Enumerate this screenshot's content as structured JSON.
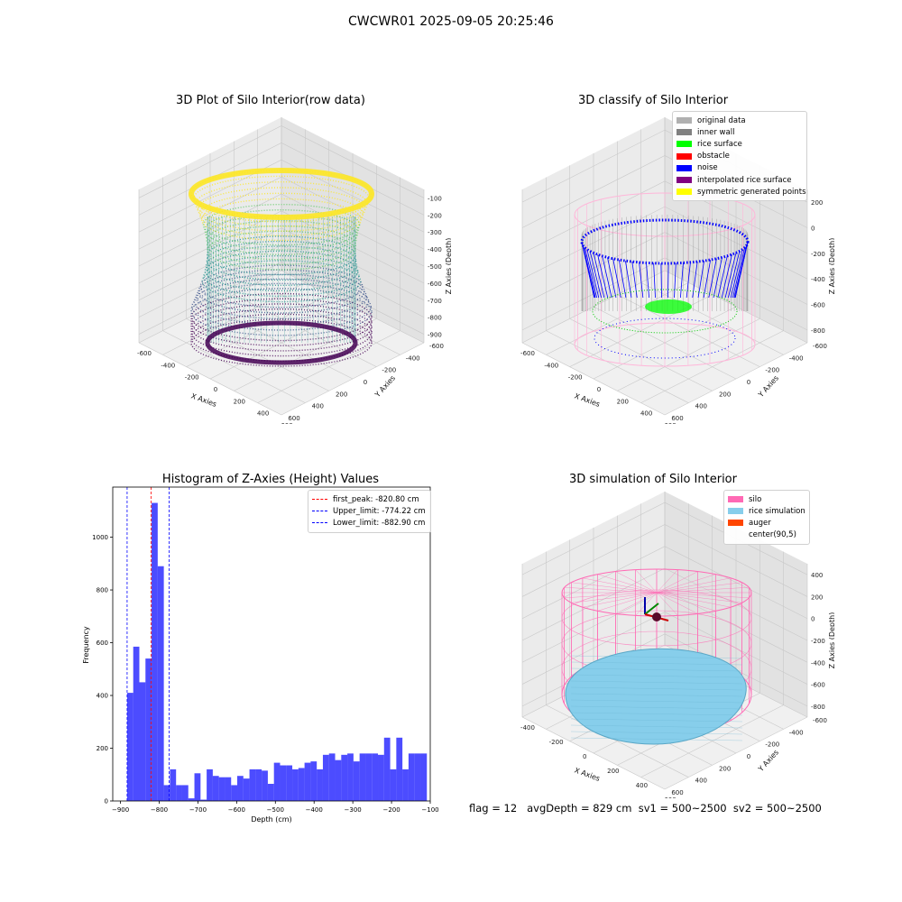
{
  "figure": {
    "title": "CWCWR01 2025-09-05 20:25:46"
  },
  "panels": {
    "raw": {
      "title": "3D Plot of Silo Interior(row data)",
      "xlabel": "X Axies",
      "ylabel": "Y Axies",
      "zlabel": "Z Axies (Depth)",
      "x_ticks": [
        "-600",
        "-400",
        "-200",
        "0",
        "200",
        "400",
        "600"
      ],
      "y_ticks": [
        "-600",
        "-400",
        "-200",
        "0",
        "200",
        "400",
        "600"
      ],
      "z_ticks": [
        "-100",
        "-200",
        "-300",
        "-400",
        "-500",
        "-600",
        "-700",
        "-800",
        "-900"
      ],
      "colormap": [
        "#fde725",
        "#5ec962",
        "#21918c",
        "#3b528b",
        "#440154"
      ]
    },
    "classify": {
      "title": "3D classify of Silo Interior",
      "xlabel": "X Axies",
      "ylabel": "Y Axies",
      "zlabel": "Z Axies (Depth)",
      "x_ticks": [
        "-600",
        "-400",
        "-200",
        "0",
        "200",
        "400",
        "600"
      ],
      "y_ticks": [
        "-600",
        "-400",
        "-200",
        "0",
        "200",
        "400",
        "600"
      ],
      "z_ticks": [
        "200",
        "0",
        "-200",
        "-400",
        "-600",
        "-800"
      ],
      "legend": [
        {
          "label": "original data",
          "color": "#b0b0b0"
        },
        {
          "label": "inner wall",
          "color": "#808080"
        },
        {
          "label": "rice surface",
          "color": "#00ff00"
        },
        {
          "label": "obstacle",
          "color": "#ff0000"
        },
        {
          "label": "noise",
          "color": "#0000ff"
        },
        {
          "label": "interpolated rice surface",
          "color": "#800080"
        },
        {
          "label": "symmetric generated points",
          "color": "#ffff00"
        }
      ]
    },
    "histogram": {
      "title": "Histogram of Z-Axies (Height) Values",
      "xlabel": "Depth (cm)",
      "ylabel": "Frequency",
      "legend": [
        {
          "label": "first_peak: -820.80 cm",
          "color": "#ff0000"
        },
        {
          "label": "Upper_limit: -774.22 cm",
          "color": "#0000ff"
        },
        {
          "label": "Lower_limit: -882.90 cm",
          "color": "#0000ff"
        }
      ]
    },
    "simulation": {
      "title": "3D simulation of Silo Interior",
      "xlabel": "X Axies",
      "ylabel": "Y Axies",
      "zlabel": "Z Axies (Depth)",
      "x_ticks": [
        "-400",
        "-200",
        "0",
        "200",
        "400",
        "600"
      ],
      "y_ticks": [
        "-600",
        "-400",
        "-200",
        "0",
        "200",
        "400",
        "600"
      ],
      "z_ticks": [
        "400",
        "200",
        "0",
        "-200",
        "-400",
        "-600",
        "-800"
      ],
      "legend": [
        {
          "label": "silo",
          "color": "#ff69b4"
        },
        {
          "label": "rice simulation",
          "color": "#87ceeb"
        },
        {
          "label": "auger",
          "color": "#ff4500"
        },
        {
          "label": "center(90,5)",
          "color": ""
        }
      ]
    }
  },
  "footer": {
    "text": "flag = 12   avgDepth = 829 cm  sv1 = 500~2500  sv2 = 500~2500"
  },
  "chart_data": [
    {
      "type": "histogram",
      "title": "Histogram of Z-Axies (Height) Values",
      "xlabel": "Depth (cm)",
      "ylabel": "Frequency",
      "xlim": [
        -920,
        -100
      ],
      "ylim": [
        0,
        1190
      ],
      "x_ticks": [
        -900,
        -800,
        -700,
        -600,
        -500,
        -400,
        -300,
        -200,
        -100
      ],
      "y_ticks": [
        0,
        200,
        400,
        600,
        800,
        1000
      ],
      "bar_color": "#0000ff",
      "bins": [
        {
          "x0": -882.9,
          "x1": -867.1,
          "count": 410
        },
        {
          "x0": -867.1,
          "x1": -851.3,
          "count": 585
        },
        {
          "x0": -851.3,
          "x1": -835.5,
          "count": 450
        },
        {
          "x0": -835.5,
          "x1": -819.7,
          "count": 540
        },
        {
          "x0": -819.7,
          "x1": -803.9,
          "count": 1130
        },
        {
          "x0": -803.9,
          "x1": -788.1,
          "count": 890
        },
        {
          "x0": -788.1,
          "x1": -772.3,
          "count": 60
        },
        {
          "x0": -772.3,
          "x1": -756.5,
          "count": 120
        },
        {
          "x0": -756.5,
          "x1": -740.7,
          "count": 60
        },
        {
          "x0": -740.7,
          "x1": -724.9,
          "count": 60
        },
        {
          "x0": -724.9,
          "x1": -709.1,
          "count": 10
        },
        {
          "x0": -709.1,
          "x1": -693.3,
          "count": 105
        },
        {
          "x0": -693.3,
          "x1": -677.5,
          "count": 5
        },
        {
          "x0": -677.5,
          "x1": -661.7,
          "count": 120
        },
        {
          "x0": -661.7,
          "x1": -645.9,
          "count": 95
        },
        {
          "x0": -645.9,
          "x1": -630.1,
          "count": 90
        },
        {
          "x0": -630.1,
          "x1": -614.3,
          "count": 90
        },
        {
          "x0": -614.3,
          "x1": -598.5,
          "count": 60
        },
        {
          "x0": -598.5,
          "x1": -582.7,
          "count": 95
        },
        {
          "x0": -582.7,
          "x1": -566.9,
          "count": 85
        },
        {
          "x0": -566.9,
          "x1": -551.1,
          "count": 120
        },
        {
          "x0": -551.1,
          "x1": -535.3,
          "count": 120
        },
        {
          "x0": -535.3,
          "x1": -519.5,
          "count": 115
        },
        {
          "x0": -519.5,
          "x1": -503.7,
          "count": 65
        },
        {
          "x0": -503.7,
          "x1": -487.9,
          "count": 145
        },
        {
          "x0": -487.9,
          "x1": -472.1,
          "count": 135
        },
        {
          "x0": -472.1,
          "x1": -456.3,
          "count": 135
        },
        {
          "x0": -456.3,
          "x1": -440.5,
          "count": 120
        },
        {
          "x0": -440.5,
          "x1": -424.7,
          "count": 125
        },
        {
          "x0": -424.7,
          "x1": -408.9,
          "count": 145
        },
        {
          "x0": -408.9,
          "x1": -393.1,
          "count": 150
        },
        {
          "x0": -393.1,
          "x1": -377.3,
          "count": 120
        },
        {
          "x0": -377.3,
          "x1": -361.5,
          "count": 175
        },
        {
          "x0": -361.5,
          "x1": -345.7,
          "count": 180
        },
        {
          "x0": -345.7,
          "x1": -329.9,
          "count": 155
        },
        {
          "x0": -329.9,
          "x1": -314.1,
          "count": 175
        },
        {
          "x0": -314.1,
          "x1": -298.3,
          "count": 180
        },
        {
          "x0": -298.3,
          "x1": -282.5,
          "count": 150
        },
        {
          "x0": -282.5,
          "x1": -266.7,
          "count": 180
        },
        {
          "x0": -266.7,
          "x1": -250.9,
          "count": 180
        },
        {
          "x0": -250.9,
          "x1": -235.1,
          "count": 180
        },
        {
          "x0": -235.1,
          "x1": -219.3,
          "count": 175
        },
        {
          "x0": -219.3,
          "x1": -203.5,
          "count": 240
        },
        {
          "x0": -203.5,
          "x1": -187.7,
          "count": 120
        },
        {
          "x0": -187.7,
          "x1": -171.9,
          "count": 240
        },
        {
          "x0": -171.9,
          "x1": -156.1,
          "count": 120
        },
        {
          "x0": -156.1,
          "x1": -140.3,
          "count": 180
        },
        {
          "x0": -140.3,
          "x1": -124.5,
          "count": 180
        },
        {
          "x0": -124.5,
          "x1": -108.7,
          "count": 180
        }
      ],
      "vlines": [
        {
          "label": "first_peak: -820.80 cm",
          "x": -820.8,
          "color": "#ff0000"
        },
        {
          "label": "Upper_limit: -774.22 cm",
          "x": -774.22,
          "color": "#0000ff"
        },
        {
          "label": "Lower_limit: -882.90 cm",
          "x": -882.9,
          "color": "#0000ff"
        }
      ],
      "legend_position": "top-right"
    }
  ]
}
